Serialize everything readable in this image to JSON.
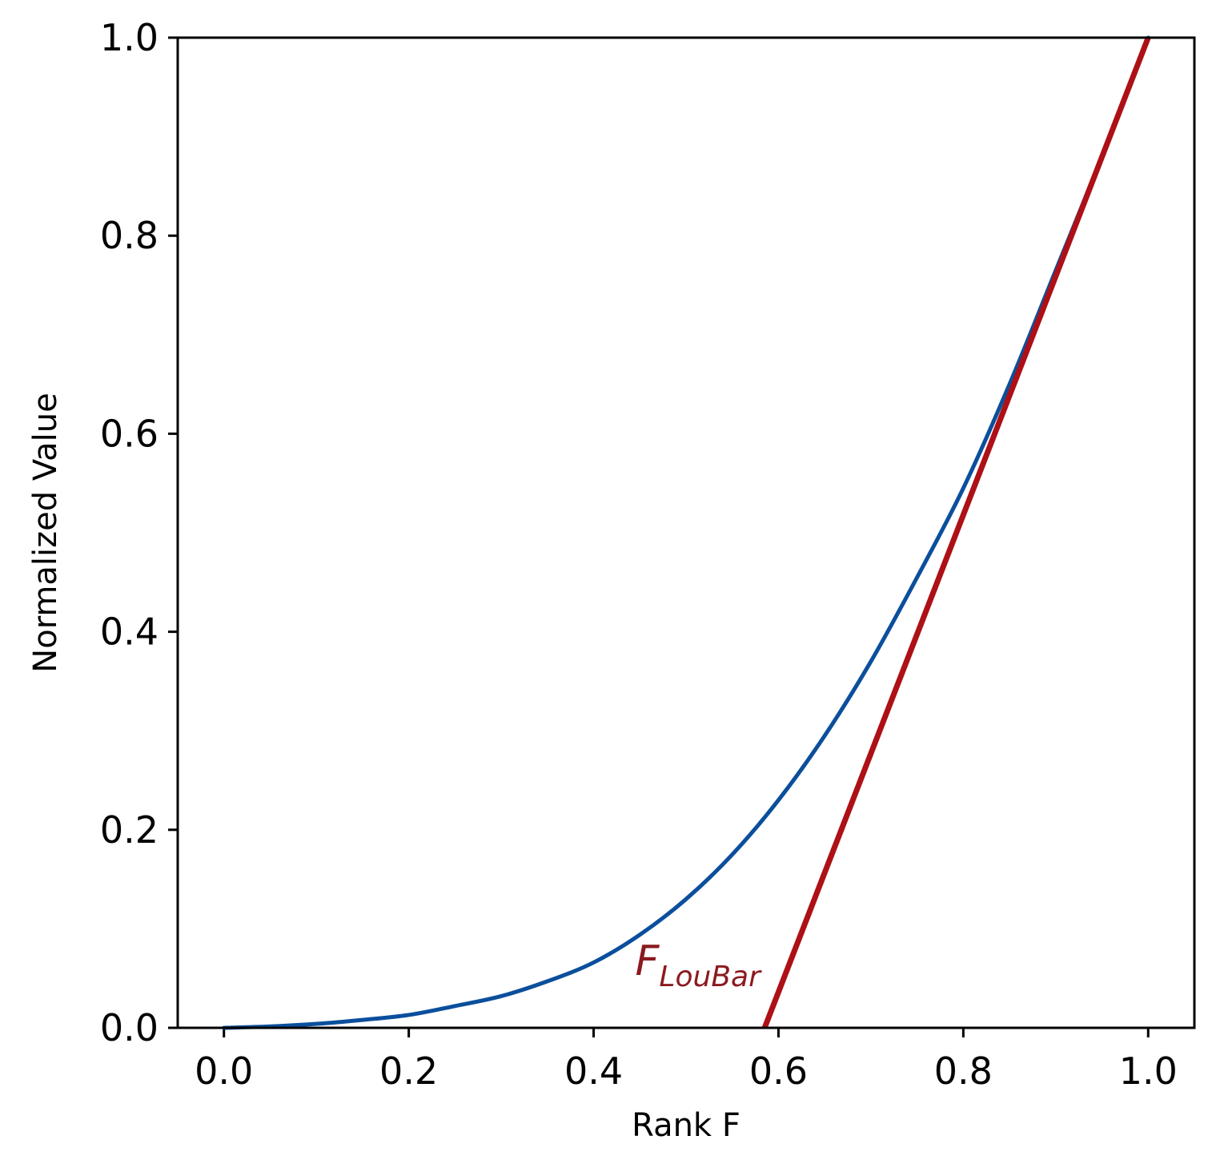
{
  "chart_data": {
    "type": "line",
    "xlabel": "Rank F",
    "ylabel": "Normalized Value",
    "xlim": [
      -0.05,
      1.05
    ],
    "ylim": [
      0.0,
      1.0
    ],
    "x_ticks": [
      0.0,
      0.2,
      0.4,
      0.6,
      0.8,
      1.0
    ],
    "y_ticks": [
      0.0,
      0.2,
      0.4,
      0.6,
      0.8,
      1.0
    ],
    "x_tick_labels": [
      "0.0",
      "0.2",
      "0.4",
      "0.6",
      "0.8",
      "1.0"
    ],
    "y_tick_labels": [
      "0.0",
      "0.2",
      "0.4",
      "0.6",
      "0.8",
      "1.0"
    ],
    "grid": false,
    "series": [
      {
        "kind": "curve",
        "color": "#0b4f9c",
        "x": [
          0.0,
          0.05,
          0.1,
          0.15,
          0.2,
          0.25,
          0.3,
          0.35,
          0.4,
          0.45,
          0.5,
          0.55,
          0.6,
          0.65,
          0.7,
          0.75,
          0.8,
          0.85,
          0.9,
          0.95,
          1.0
        ],
        "y": [
          0.0,
          0.0014,
          0.004,
          0.008,
          0.013,
          0.022,
          0.032,
          0.047,
          0.066,
          0.094,
          0.13,
          0.175,
          0.23,
          0.295,
          0.37,
          0.455,
          0.545,
          0.65,
          0.765,
          0.88,
          1.0
        ]
      },
      {
        "kind": "tangent",
        "color": "#ad1016",
        "x": [
          0.585,
          1.0
        ],
        "y": [
          0.0,
          1.0
        ]
      }
    ],
    "annotations": [
      {
        "text": "F",
        "subscript": "LouBar",
        "x": 0.445,
        "y": 0.05,
        "color": "#8b1a1f"
      }
    ]
  }
}
